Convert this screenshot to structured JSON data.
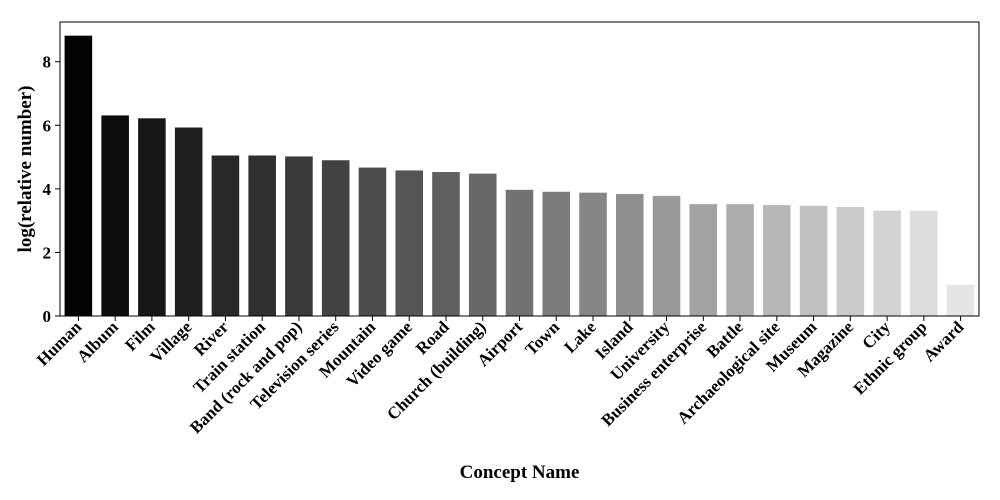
{
  "chart_data": {
    "type": "bar",
    "xlabel": "Concept Name",
    "ylabel": "log(relative number)",
    "ylim": [
      0,
      9.25
    ],
    "yticks": [
      0,
      2,
      4,
      6,
      8
    ],
    "grid": false,
    "legend": "none",
    "categories": [
      "Human",
      "Album",
      "Film",
      "Village",
      "River",
      "Train station",
      "Band (rock and pop)",
      "Television series",
      "Mountain",
      "Video game",
      "Road",
      "Church (building)",
      "Airport",
      "Town",
      "Lake",
      "Island",
      "University",
      "Business enterprise",
      "Battle",
      "Archaeological site",
      "Museum",
      "Magazine",
      "City",
      "Ethnic group",
      "Award"
    ],
    "values": [
      8.82,
      6.31,
      6.22,
      5.93,
      5.05,
      5.05,
      5.02,
      4.9,
      4.67,
      4.58,
      4.53,
      4.48,
      3.97,
      3.91,
      3.88,
      3.84,
      3.78,
      3.52,
      3.52,
      3.49,
      3.47,
      3.43,
      3.31,
      3.31,
      0.98
    ],
    "bar_colors": [
      "#030303",
      "#0d0d0d",
      "#171717",
      "#1f1f1f",
      "#282828",
      "#303030",
      "#393939",
      "#424242",
      "#4c4c4c",
      "#555555",
      "#5f5f5f",
      "#686868",
      "#727272",
      "#7c7c7c",
      "#868686",
      "#909090",
      "#999999",
      "#a3a3a3",
      "#adadad",
      "#b7b7b7",
      "#c1c1c1",
      "#cacaca",
      "#d3d3d3",
      "#dcdcdc",
      "#e5e5e5"
    ]
  }
}
